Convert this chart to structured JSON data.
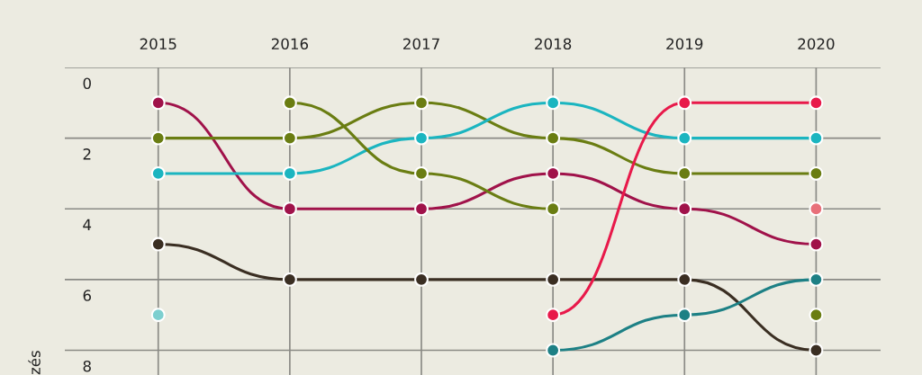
{
  "chart_data": {
    "type": "line",
    "ylabel": "zés",
    "x": [
      2015,
      2016,
      2017,
      2018,
      2019,
      2020
    ],
    "xlim": [
      2014.29,
      2020.49
    ],
    "xticks": [
      2015,
      2016,
      2017,
      2018,
      2019,
      2020
    ],
    "ylim": [
      8.7,
      0
    ],
    "yticks": [
      0,
      2,
      4,
      6,
      8
    ],
    "grid": true,
    "marker": "circle",
    "line_style": "solid",
    "series": [
      {
        "color": "#a0124a",
        "values": [
          1,
          4,
          4,
          3,
          4,
          5
        ]
      },
      {
        "color": "#6a7d12",
        "values": [
          2,
          2,
          1,
          2,
          3,
          3
        ]
      },
      {
        "color": "#1bb5c0",
        "values": [
          3,
          3,
          2,
          1,
          2,
          2
        ]
      },
      {
        "color": "#6a7d12",
        "values": [
          null,
          1,
          3,
          4,
          null,
          7
        ]
      },
      {
        "color": "#3a2e22",
        "values": [
          5,
          6,
          6,
          6,
          6,
          8
        ]
      },
      {
        "color": "#7dcfcf",
        "values": [
          7,
          null,
          null,
          null,
          null,
          null
        ]
      },
      {
        "color": "#e8194a",
        "values": [
          null,
          null,
          null,
          7,
          1,
          1
        ]
      },
      {
        "color": "#1d8085",
        "values": [
          null,
          null,
          null,
          8,
          7,
          6
        ]
      },
      {
        "color": "#e8707a",
        "values": [
          null,
          null,
          null,
          null,
          null,
          4
        ]
      }
    ]
  }
}
